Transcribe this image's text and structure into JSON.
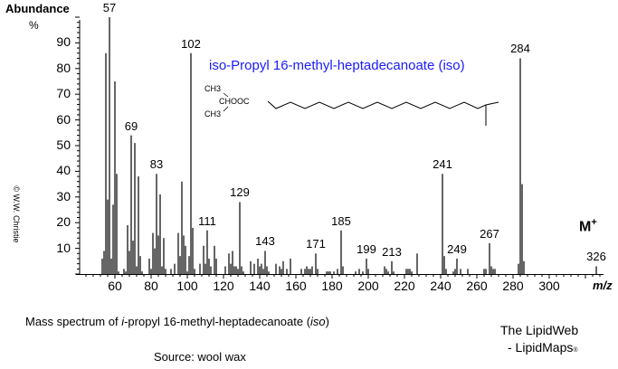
{
  "chart": {
    "ylabel": "Abundance",
    "yunit": "%",
    "xunit": "m/z",
    "title": "iso-Propyl 16-methyl-heptadecanoate  (iso)",
    "molecular_ion_label": "M",
    "molecular_ion_sup": "+",
    "copyright": "© W.W. Christie",
    "structure": {
      "ch3_top": "CH3",
      "ester": "CHOOC",
      "ch3_bottom": "CH3"
    },
    "yticks": [
      "90",
      "80",
      "70",
      "60",
      "50",
      "40",
      "30",
      "20",
      "10"
    ],
    "xticks": [
      "60",
      "80",
      "100",
      "120",
      "140",
      "160",
      "180",
      "200",
      "220",
      "240",
      "260",
      "280",
      "300"
    ],
    "peak_labels": [
      "57",
      "69",
      "83",
      "102",
      "111",
      "129",
      "143",
      "171",
      "185",
      "199",
      "213",
      "241",
      "249",
      "267",
      "284",
      "326"
    ]
  },
  "footer": {
    "caption_pre": "Mass spectrum of ",
    "caption_i": "i",
    "caption_mid": "-propyl 16-methyl-heptadecanoate (",
    "caption_iso": "iso",
    "caption_post": ")",
    "source": "Source: wool wax",
    "brand_line1": "The LipidWeb",
    "brand_line2": "- LipidMaps",
    "brand_reg": "®"
  },
  "chart_data": {
    "type": "bar",
    "title": "iso-Propyl 16-methyl-heptadecanoate (iso)",
    "xlabel": "m/z",
    "ylabel": "Abundance %",
    "xlim": [
      40,
      330
    ],
    "ylim": [
      0,
      100
    ],
    "labeled_peaks": [
      57,
      69,
      83,
      102,
      111,
      129,
      143,
      171,
      185,
      199,
      213,
      241,
      249,
      267,
      284,
      326
    ],
    "x": [
      53,
      54,
      55,
      56,
      57,
      58,
      59,
      60,
      61,
      62,
      65,
      66,
      67,
      68,
      69,
      70,
      71,
      72,
      73,
      74,
      75,
      79,
      80,
      81,
      82,
      83,
      84,
      85,
      86,
      87,
      88,
      91,
      93,
      95,
      96,
      97,
      98,
      99,
      100,
      101,
      102,
      103,
      104,
      107,
      109,
      110,
      111,
      112,
      113,
      115,
      116,
      121,
      123,
      124,
      125,
      126,
      127,
      128,
      129,
      130,
      131,
      135,
      137,
      139,
      140,
      141,
      142,
      143,
      144,
      145,
      149,
      151,
      152,
      153,
      155,
      157,
      163,
      165,
      166,
      167,
      168,
      169,
      171,
      172,
      177,
      178,
      179,
      181,
      183,
      185,
      186,
      193,
      195,
      197,
      199,
      200,
      209,
      210,
      211,
      213,
      214,
      221,
      222,
      223,
      224,
      227,
      241,
      242,
      243,
      247,
      248,
      249,
      251,
      255,
      264,
      265,
      267,
      268,
      269,
      270,
      283,
      284,
      285,
      286,
      326
    ],
    "values": [
      6,
      9,
      86,
      29,
      100,
      6,
      27,
      75,
      39,
      1,
      2,
      1,
      19,
      9,
      54,
      13,
      51,
      3,
      38,
      7,
      1,
      6,
      2,
      16,
      10,
      39,
      15,
      31,
      3,
      14,
      2,
      2,
      4,
      16,
      7,
      36,
      15,
      11,
      1,
      7,
      86,
      18,
      2,
      4,
      11,
      4,
      17,
      6,
      3,
      11,
      6,
      3,
      8,
      4,
      9,
      3,
      3,
      2,
      28,
      3,
      1,
      5,
      4,
      6,
      3,
      4,
      2,
      9,
      3,
      1,
      4,
      3,
      2,
      5,
      2,
      6,
      2,
      2,
      3,
      2,
      2,
      3,
      8,
      2,
      1,
      1,
      1,
      1,
      2,
      17,
      3,
      1,
      2,
      1,
      6,
      2,
      3,
      2,
      1,
      5,
      1,
      2,
      2,
      2,
      1,
      8,
      39,
      7,
      2,
      1,
      2,
      6,
      2,
      2,
      2,
      2,
      12,
      3,
      2,
      2,
      4,
      84,
      35,
      5,
      3
    ]
  }
}
